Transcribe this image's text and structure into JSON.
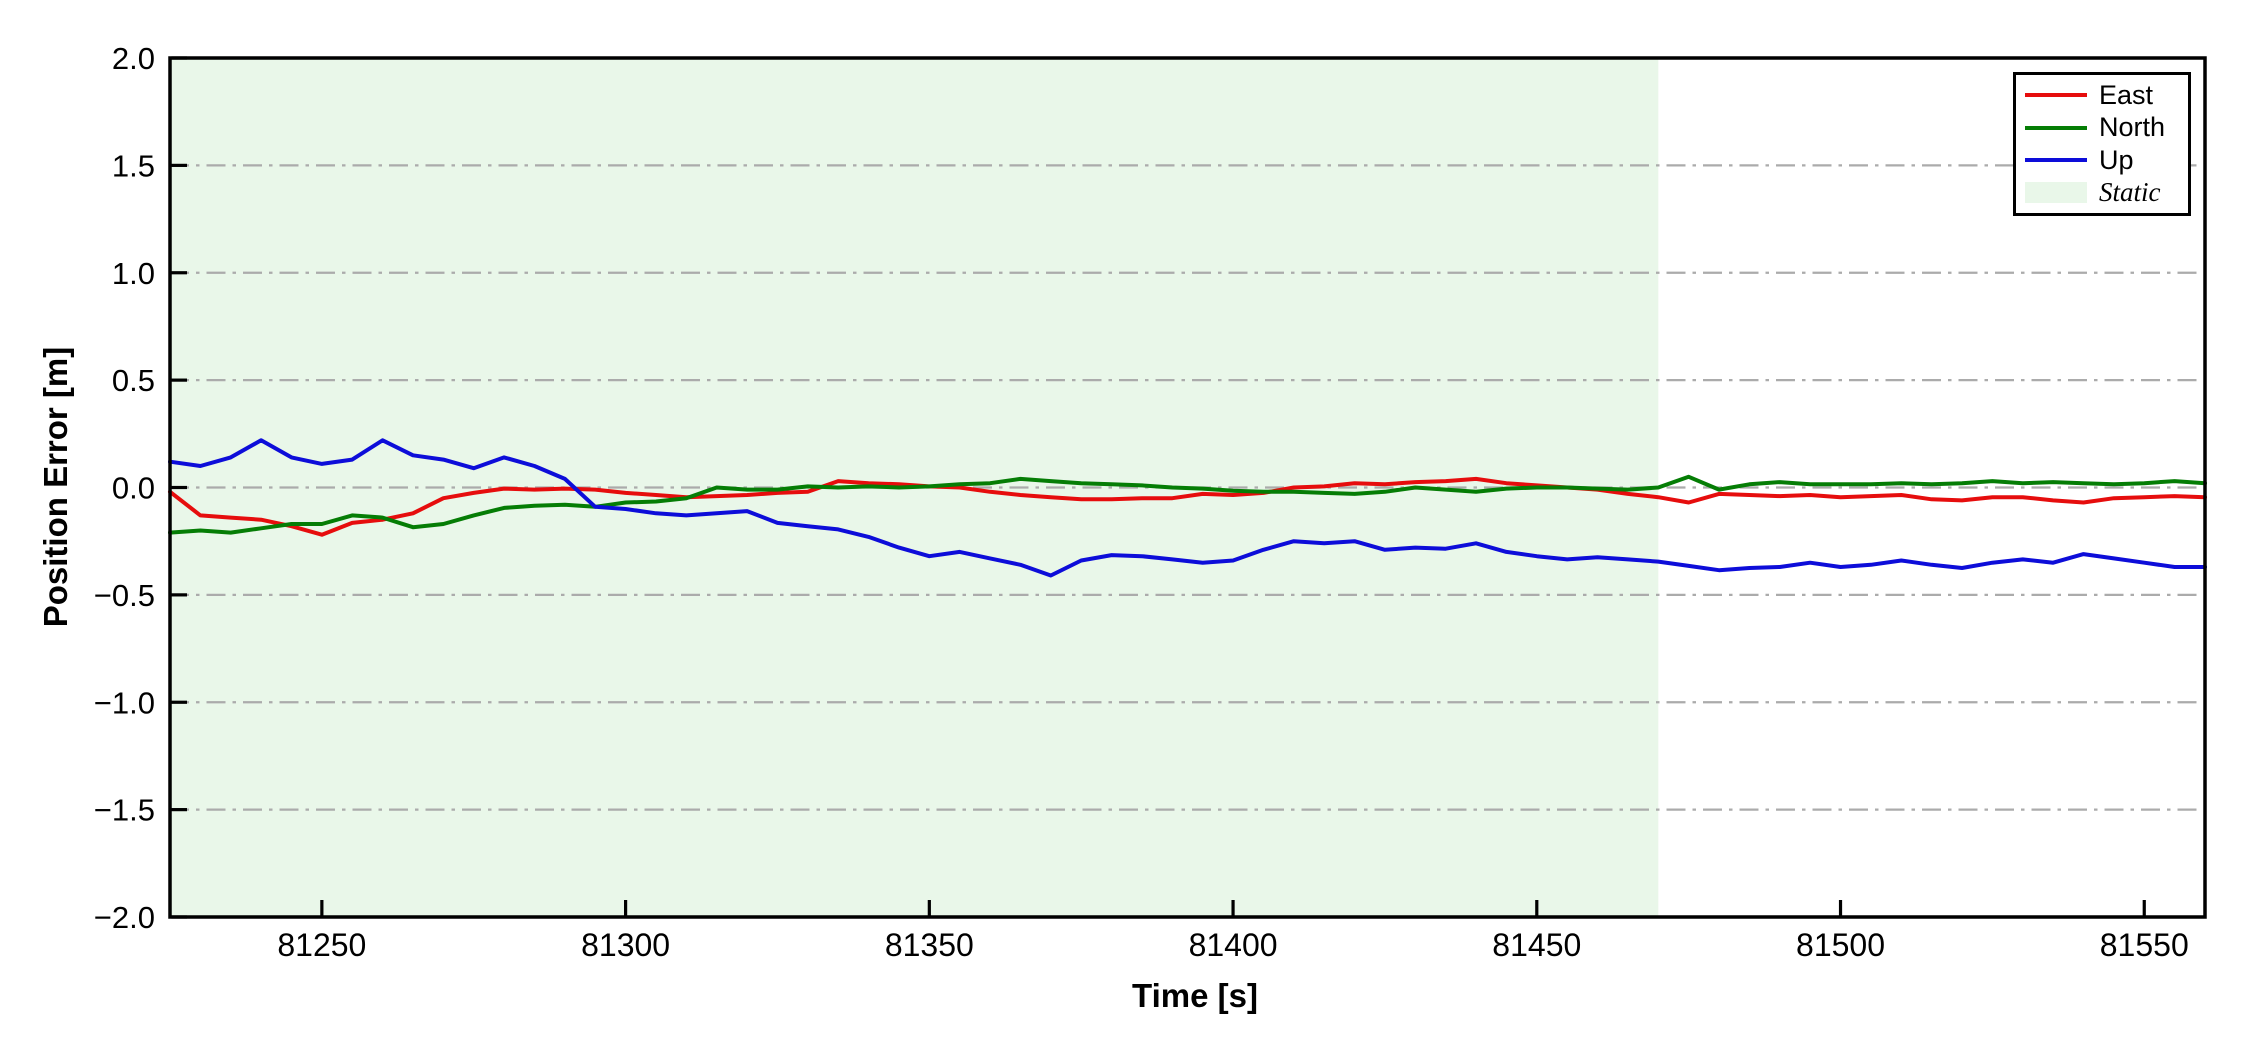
{
  "figure": {
    "background": "#ffffff"
  },
  "chart_data": {
    "type": "line",
    "title": "",
    "xlabel": "Time [s]",
    "ylabel": "Position Error [m]",
    "xlim": [
      81225,
      81560
    ],
    "ylim": [
      -2.0,
      2.0
    ],
    "xticks": [
      81250,
      81300,
      81350,
      81400,
      81450,
      81500,
      81550
    ],
    "xtick_labels": [
      "81250",
      "81300",
      "81350",
      "81400",
      "81450",
      "81500",
      "81550"
    ],
    "yticks": [
      -2.0,
      -1.5,
      -1.0,
      -0.5,
      0.0,
      0.5,
      1.0,
      1.5,
      2.0
    ],
    "ytick_labels": [
      "−2.0",
      "−1.5",
      "−1.0",
      "−0.5",
      "0.0",
      "0.5",
      "1.0",
      "1.5",
      "2.0"
    ],
    "grid": {
      "axis": "y",
      "style": "dash-dot",
      "color": "#ababab",
      "on": true
    },
    "legend": {
      "position": "upper-right",
      "entries": [
        "East",
        "North",
        "Up",
        "Static"
      ]
    },
    "static_region": {
      "label": "Static",
      "x_start": 81225,
      "x_end": 81470,
      "fill": "#e9f7e9"
    },
    "x": [
      81225,
      81230,
      81235,
      81240,
      81245,
      81250,
      81255,
      81260,
      81265,
      81270,
      81275,
      81280,
      81285,
      81290,
      81295,
      81300,
      81305,
      81310,
      81315,
      81320,
      81325,
      81330,
      81335,
      81340,
      81345,
      81350,
      81355,
      81360,
      81365,
      81370,
      81375,
      81380,
      81385,
      81390,
      81395,
      81400,
      81405,
      81410,
      81415,
      81420,
      81425,
      81430,
      81435,
      81440,
      81445,
      81450,
      81455,
      81460,
      81465,
      81470,
      81475,
      81480,
      81485,
      81490,
      81495,
      81500,
      81505,
      81510,
      81515,
      81520,
      81525,
      81530,
      81535,
      81540,
      81545,
      81550,
      81555,
      81560
    ],
    "series": [
      {
        "name": "East",
        "color": "#e60d0d",
        "values": [
          -0.02,
          -0.13,
          -0.14,
          -0.15,
          -0.18,
          -0.22,
          -0.165,
          -0.15,
          -0.12,
          -0.05,
          -0.025,
          -0.005,
          -0.01,
          -0.005,
          -0.01,
          -0.025,
          -0.035,
          -0.045,
          -0.04,
          -0.035,
          -0.025,
          -0.02,
          0.03,
          0.02,
          0.015,
          0.005,
          0.0,
          -0.02,
          -0.035,
          -0.045,
          -0.055,
          -0.055,
          -0.05,
          -0.05,
          -0.03,
          -0.035,
          -0.025,
          0.0,
          0.005,
          0.02,
          0.015,
          0.025,
          0.03,
          0.04,
          0.02,
          0.01,
          0.0,
          -0.01,
          -0.03,
          -0.045,
          -0.07,
          -0.03,
          -0.035,
          -0.04,
          -0.035,
          -0.045,
          -0.04,
          -0.035,
          -0.055,
          -0.06,
          -0.045,
          -0.045,
          -0.06,
          -0.07,
          -0.05,
          -0.045,
          -0.04,
          -0.045
        ]
      },
      {
        "name": "North",
        "color": "#057d05",
        "values": [
          -0.21,
          -0.2,
          -0.21,
          -0.19,
          -0.17,
          -0.17,
          -0.13,
          -0.14,
          -0.185,
          -0.17,
          -0.13,
          -0.095,
          -0.085,
          -0.08,
          -0.09,
          -0.07,
          -0.065,
          -0.05,
          0.0,
          -0.01,
          -0.01,
          0.005,
          0.0,
          0.005,
          0.0,
          0.005,
          0.015,
          0.02,
          0.04,
          0.03,
          0.02,
          0.015,
          0.01,
          0.0,
          -0.005,
          -0.015,
          -0.02,
          -0.02,
          -0.025,
          -0.03,
          -0.02,
          0.0,
          -0.01,
          -0.02,
          -0.005,
          0.0,
          0.0,
          -0.005,
          -0.01,
          0.0,
          0.05,
          -0.01,
          0.015,
          0.025,
          0.015,
          0.015,
          0.015,
          0.02,
          0.015,
          0.02,
          0.03,
          0.02,
          0.025,
          0.02,
          0.015,
          0.02,
          0.03,
          0.02
        ]
      },
      {
        "name": "Up",
        "color": "#0d0dd9",
        "values": [
          0.12,
          0.1,
          0.14,
          0.22,
          0.14,
          0.11,
          0.13,
          0.22,
          0.15,
          0.13,
          0.09,
          0.14,
          0.1,
          0.04,
          -0.09,
          -0.1,
          -0.12,
          -0.13,
          -0.12,
          -0.11,
          -0.165,
          -0.18,
          -0.195,
          -0.23,
          -0.28,
          -0.32,
          -0.3,
          -0.33,
          -0.36,
          -0.41,
          -0.34,
          -0.315,
          -0.32,
          -0.335,
          -0.35,
          -0.34,
          -0.29,
          -0.25,
          -0.26,
          -0.25,
          -0.29,
          -0.28,
          -0.285,
          -0.26,
          -0.3,
          -0.32,
          -0.335,
          -0.325,
          -0.335,
          -0.345,
          -0.365,
          -0.385,
          -0.375,
          -0.37,
          -0.35,
          -0.37,
          -0.36,
          -0.34,
          -0.36,
          -0.375,
          -0.35,
          -0.335,
          -0.35,
          -0.31,
          -0.33,
          -0.35,
          -0.37,
          -0.37
        ]
      }
    ]
  }
}
